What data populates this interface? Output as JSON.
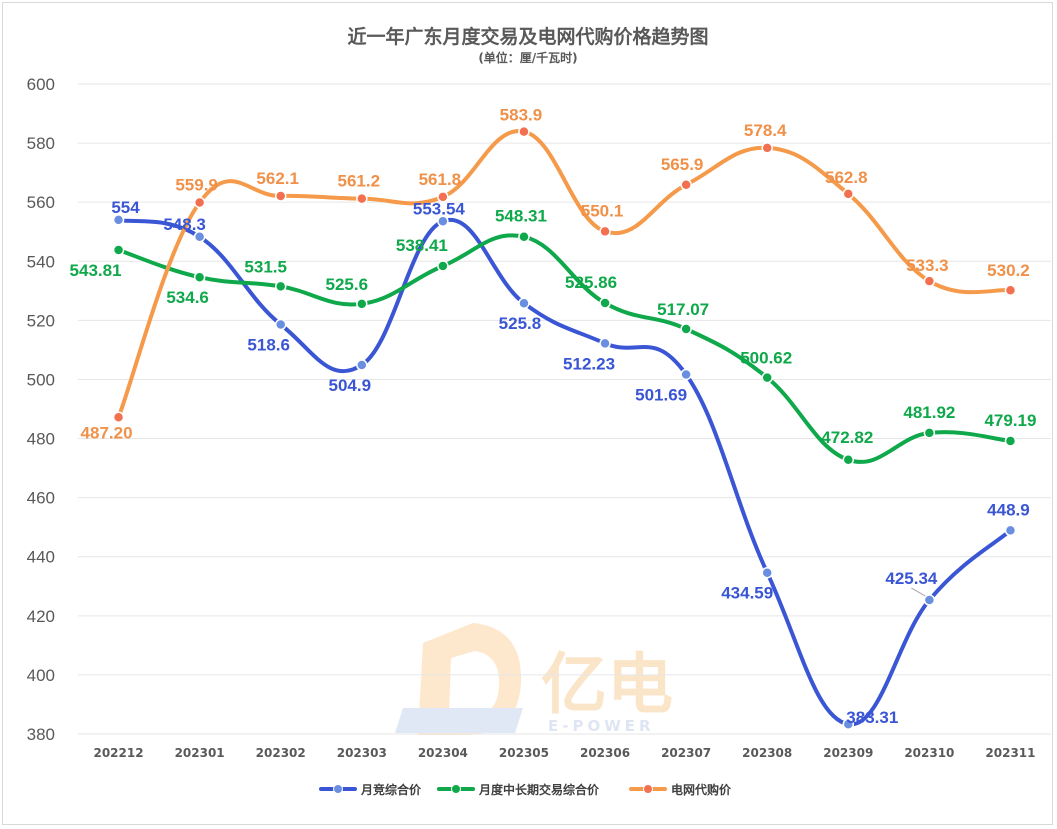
{
  "chart_data": {
    "type": "line",
    "title": "近一年广东月度交易及电网代购价格趋势图",
    "subtitle": "(单位：厘/千瓦时)",
    "categories": [
      "202212",
      "202301",
      "202302",
      "202303",
      "202304",
      "202305",
      "202306",
      "202307",
      "202308",
      "202309",
      "202310",
      "202311"
    ],
    "ylim": [
      380,
      600
    ],
    "yticks": [
      380,
      400,
      420,
      440,
      460,
      480,
      500,
      520,
      540,
      560,
      580,
      600
    ],
    "grid": true,
    "legend_position": "bottom",
    "series": [
      {
        "name": "月竞综合价",
        "color": "#3a56d4",
        "marker": "#6a8fe0",
        "values": [
          554,
          548.3,
          518.6,
          504.9,
          553.54,
          525.8,
          512.23,
          501.69,
          434.59,
          383.31,
          425.34,
          448.9
        ],
        "labels": [
          "554",
          "548.3",
          "518.6",
          "504.9",
          "553.54",
          "525.8",
          "512.23",
          "501.69",
          "434.59",
          "383.31",
          "425.34",
          "448.9"
        ]
      },
      {
        "name": "月度中长期交易综合价",
        "color": "#0fa84a",
        "marker": "#0fa84a",
        "values": [
          543.81,
          534.6,
          531.5,
          525.6,
          538.41,
          548.31,
          525.86,
          517.07,
          500.62,
          472.82,
          481.92,
          479.19
        ],
        "labels": [
          "543.81",
          "534.6",
          "531.5",
          "525.6",
          "538.41",
          "548.31",
          "525.86",
          "517.07",
          "500.62",
          "472.82",
          "481.92",
          "479.19"
        ]
      },
      {
        "name": "电网代购价",
        "color": "#f59a4a",
        "marker": "#f27050",
        "values": [
          487.2,
          559.9,
          562.1,
          561.2,
          561.8,
          583.9,
          550.1,
          565.9,
          578.4,
          562.8,
          533.3,
          530.2
        ],
        "labels": [
          "487.20",
          "559.9",
          "562.1",
          "561.2",
          "561.8",
          "583.9",
          "550.1",
          "565.9",
          "578.4",
          "562.8",
          "533.3",
          "530.2"
        ]
      }
    ]
  },
  "watermark": {
    "brand": "亿电",
    "brand_en": "E-POWER"
  }
}
